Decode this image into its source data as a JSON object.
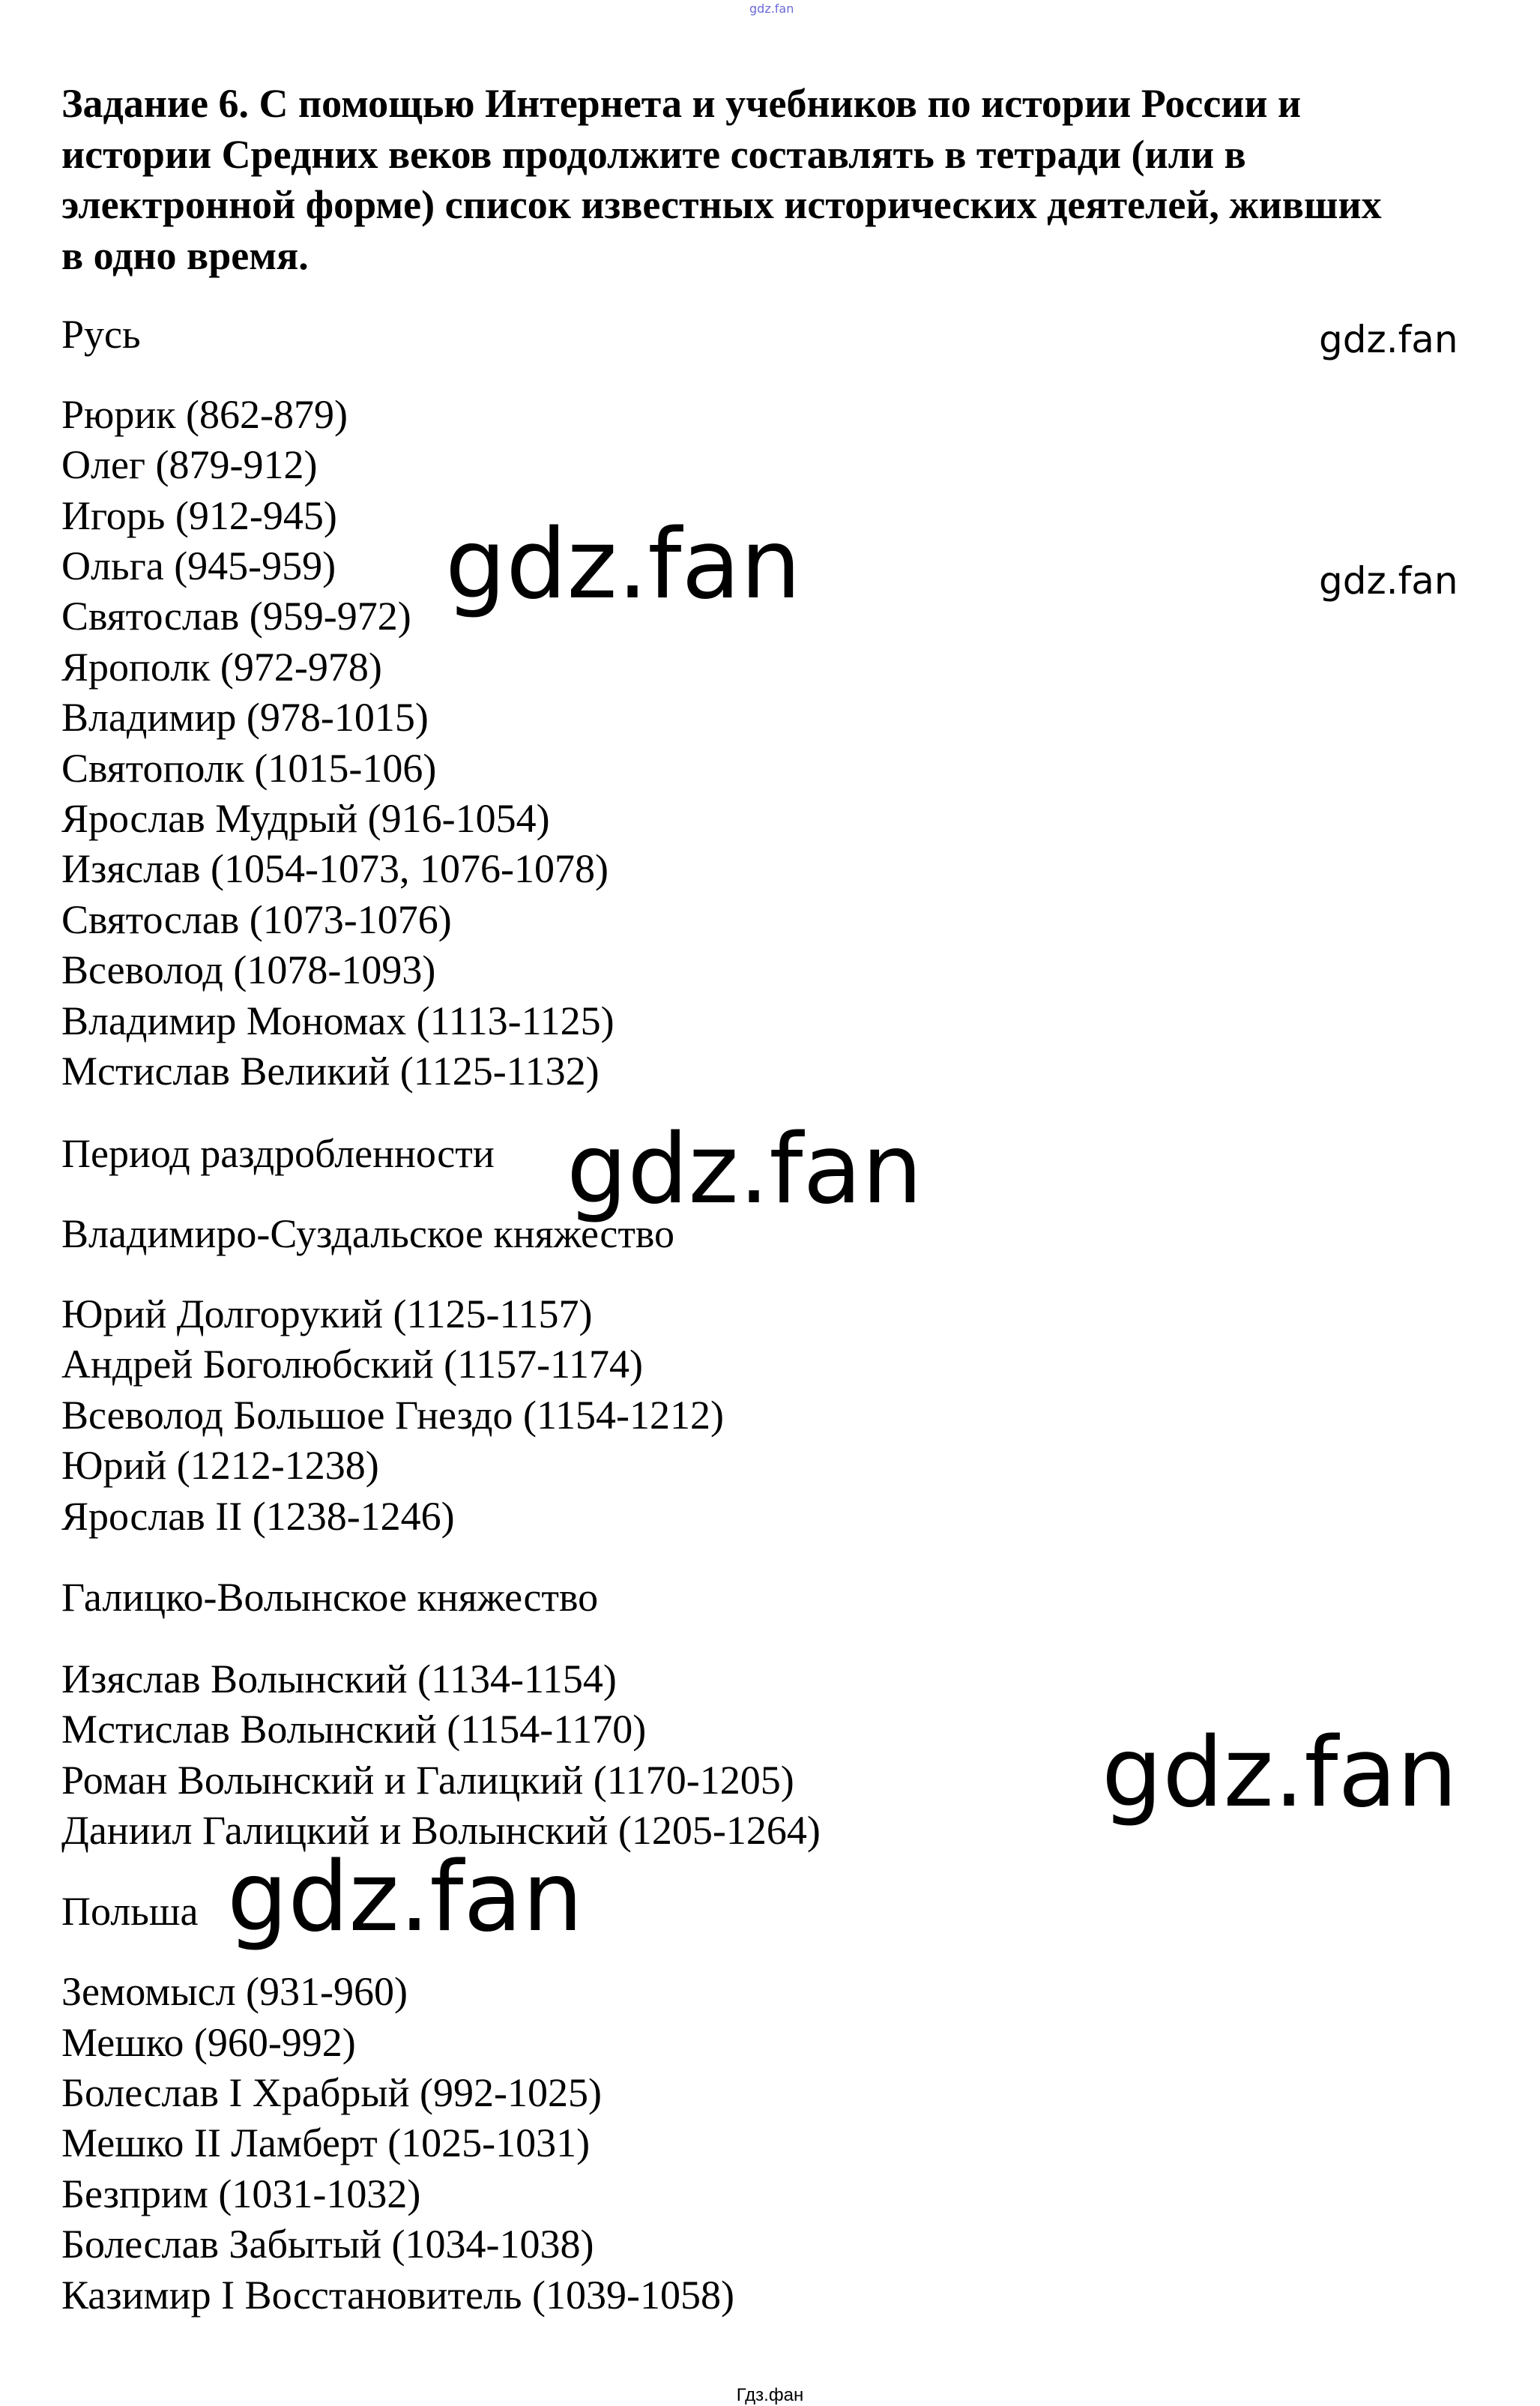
{
  "watermark_top": "gdz.fan",
  "title_lines": [
    "Задание 6. С помощью Интернета и учебников по истории России и",
    "истории Средних веков продолжите составлять в тетради (или в",
    "электронной форме) список известных исторических деятелей, живших",
    "в одно время."
  ],
  "sections": [
    {
      "heading": "Русь",
      "items": [
        "Рюрик (862-879)",
        "Олег (879-912)",
        "Игорь (912-945)",
        "Ольга (945-959)",
        "Святослав (959-972)",
        "Ярополк (972-978)",
        "Владимир (978-1015)",
        "Святополк (1015-106)",
        "Ярослав Мудрый (916-1054)",
        "Изяслав (1054-1073, 1076-1078)",
        "Святослав (1073-1076)",
        "Всеволод (1078-1093)",
        "Владимир Мономах (1113-1125)",
        "Мстислав Великий (1125-1132)"
      ]
    },
    {
      "heading": "Период раздробленности",
      "items": []
    },
    {
      "heading": "Владимиро-Суздальское княжество",
      "items": [
        "Юрий Долгорукий (1125-1157)",
        "Андрей Боголюбский (1157-1174)",
        "Всеволод Большое Гнездо (1154-1212)",
        "Юрий (1212-1238)",
        "Ярослав II (1238-1246)"
      ]
    },
    {
      "heading": "Галицко-Волынское княжество",
      "items": [
        "Изяслав Волынский (1134-1154)",
        "Мстислав Волынский (1154-1170)",
        "Роман Волынский и Галицкий (1170-1205)",
        "Даниил Галицкий и Волынский (1205-1264)"
      ]
    },
    {
      "heading": "Польша",
      "items": [
        "Земомысл (931-960)",
        "Мешко (960-992)",
        "Болеслав I Храбрый (992-1025)",
        "Мешко II Ламберт (1025-1031)",
        "Безприм (1031-1032)",
        "Болеслав Забытый (1034-1038)",
        "Казимир I Восстановитель (1039-1058)"
      ]
    }
  ],
  "watermarks": [
    "gdz.fan",
    "gdz.fan",
    "gdz.fan",
    "gdz.fan",
    "gdz.fan",
    "gdz.fan"
  ],
  "footer": "Гдз.фан"
}
